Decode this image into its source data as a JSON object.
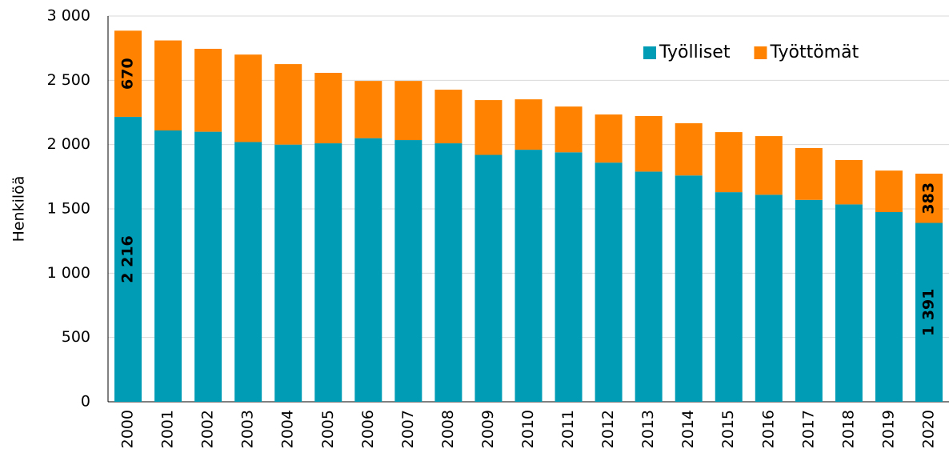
{
  "chart_data": {
    "type": "stacked_bar",
    "y_label": "Henkilöä",
    "categories": [
      "2000",
      "2001",
      "2002",
      "2003",
      "2004",
      "2005",
      "2006",
      "2007",
      "2008",
      "2009",
      "2010",
      "2011",
      "2012",
      "2013",
      "2014",
      "2015",
      "2016",
      "2017",
      "2018",
      "2019",
      "2020"
    ],
    "series": [
      {
        "name": "Työlliset",
        "color": "#009bb4",
        "values": [
          2216,
          2110,
          2100,
          2020,
          2000,
          2010,
          2050,
          2035,
          2010,
          1920,
          1960,
          1940,
          1860,
          1790,
          1760,
          1630,
          1610,
          1570,
          1535,
          1475,
          1391
        ],
        "value_labels": [
          "2 216",
          null,
          null,
          null,
          null,
          null,
          null,
          null,
          null,
          null,
          null,
          null,
          null,
          null,
          null,
          null,
          null,
          null,
          null,
          null,
          "1 391"
        ]
      },
      {
        "name": "Työttömät",
        "color": "#ff8200",
        "values": [
          670,
          700,
          645,
          680,
          626,
          548,
          445,
          460,
          417,
          426,
          392,
          356,
          374,
          432,
          406,
          467,
          456,
          403,
          345,
          323,
          383
        ],
        "value_labels": [
          "670",
          null,
          null,
          null,
          null,
          null,
          null,
          null,
          null,
          null,
          null,
          null,
          null,
          null,
          null,
          null,
          null,
          null,
          null,
          null,
          "383"
        ]
      }
    ],
    "ylim": [
      0,
      3000
    ],
    "yticks": [
      0,
      500,
      {
        "value": 1000,
        "label": "1 000"
      },
      {
        "value": 1500,
        "label": "1 500"
      },
      {
        "value": 2000,
        "label": "2 000"
      },
      {
        "value": 2500,
        "label": "2 500"
      },
      {
        "value": 3000,
        "label": "3 000"
      }
    ],
    "grid": true,
    "legend": "upper right"
  }
}
